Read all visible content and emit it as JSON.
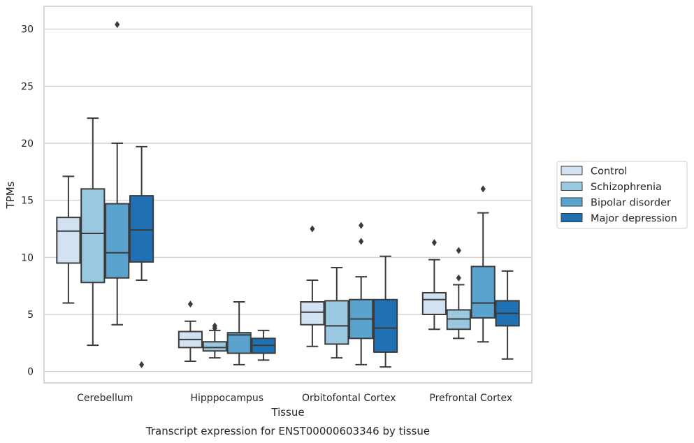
{
  "chart_data": {
    "type": "box",
    "title": "Transcript expression for ENST00000603346 by tissue",
    "xlabel": "Tissue",
    "ylabel": "TPMs",
    "ylim": [
      -1,
      32
    ],
    "yticks": [
      0,
      5,
      10,
      15,
      20,
      25,
      30
    ],
    "grid": "horizontal",
    "legend_placement": "right",
    "categories": [
      "Cerebellum",
      "Hipppocampus",
      "Orbitofontal Cortex",
      "Prefrontal Cortex"
    ],
    "series": [
      {
        "name": "Control",
        "color": "#d2e2f2",
        "boxes": [
          {
            "whisker_low": 6.0,
            "q1": 9.5,
            "median": 12.3,
            "q3": 13.5,
            "whisker_high": 17.1,
            "outliers": []
          },
          {
            "whisker_low": 0.9,
            "q1": 2.1,
            "median": 2.8,
            "q3": 3.5,
            "whisker_high": 4.4,
            "outliers": [
              5.9
            ]
          },
          {
            "whisker_low": 2.2,
            "q1": 4.1,
            "median": 5.2,
            "q3": 6.1,
            "whisker_high": 8.0,
            "outliers": [
              12.5
            ]
          },
          {
            "whisker_low": 3.7,
            "q1": 5.0,
            "median": 6.3,
            "q3": 6.9,
            "whisker_high": 9.8,
            "outliers": [
              11.3
            ]
          }
        ]
      },
      {
        "name": "Schizophrenia",
        "color": "#9ac8e0",
        "boxes": [
          {
            "whisker_low": 2.3,
            "q1": 7.8,
            "median": 12.1,
            "q3": 16.0,
            "whisker_high": 22.2,
            "outliers": []
          },
          {
            "whisker_low": 1.2,
            "q1": 1.8,
            "median": 2.1,
            "q3": 2.6,
            "whisker_high": 3.6,
            "outliers": [
              3.8,
              4.0
            ]
          },
          {
            "whisker_low": 1.2,
            "q1": 2.4,
            "median": 4.0,
            "q3": 6.2,
            "whisker_high": 9.1,
            "outliers": []
          },
          {
            "whisker_low": 2.9,
            "q1": 3.7,
            "median": 4.6,
            "q3": 5.4,
            "whisker_high": 7.6,
            "outliers": [
              8.2,
              10.6
            ]
          }
        ]
      },
      {
        "name": "Bipolar disorder",
        "color": "#5ba3cf",
        "boxes": [
          {
            "whisker_low": 4.1,
            "q1": 8.2,
            "median": 10.4,
            "q3": 14.7,
            "whisker_high": 20.0,
            "outliers": [
              30.4
            ]
          },
          {
            "whisker_low": 0.6,
            "q1": 1.6,
            "median": 3.2,
            "q3": 3.4,
            "whisker_high": 6.1,
            "outliers": []
          },
          {
            "whisker_low": 0.6,
            "q1": 2.9,
            "median": 4.6,
            "q3": 6.3,
            "whisker_high": 8.3,
            "outliers": [
              11.4,
              12.8
            ]
          },
          {
            "whisker_low": 2.6,
            "q1": 4.7,
            "median": 6.0,
            "q3": 9.2,
            "whisker_high": 13.9,
            "outliers": [
              16.0
            ]
          }
        ]
      },
      {
        "name": "Major depression",
        "color": "#2070b4",
        "boxes": [
          {
            "whisker_low": 8.0,
            "q1": 9.6,
            "median": 12.4,
            "q3": 15.4,
            "whisker_high": 19.7,
            "outliers": [
              0.6
            ]
          },
          {
            "whisker_low": 1.0,
            "q1": 1.6,
            "median": 2.3,
            "q3": 2.9,
            "whisker_high": 3.6,
            "outliers": []
          },
          {
            "whisker_low": 0.4,
            "q1": 1.7,
            "median": 3.8,
            "q3": 6.3,
            "whisker_high": 10.1,
            "outliers": []
          },
          {
            "whisker_low": 1.1,
            "q1": 4.0,
            "median": 5.1,
            "q3": 6.2,
            "whisker_high": 8.8,
            "outliers": []
          }
        ]
      }
    ]
  }
}
